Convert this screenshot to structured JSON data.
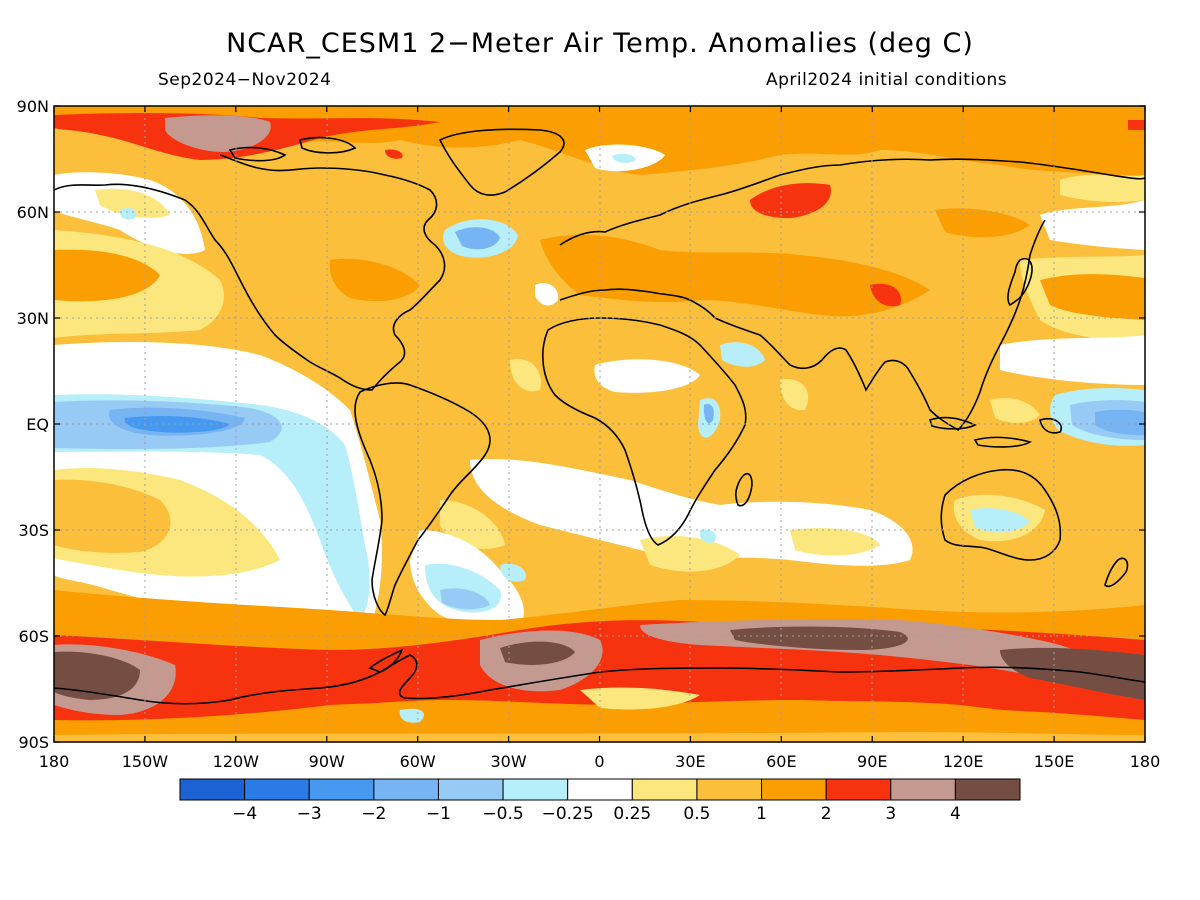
{
  "title": "NCAR_CESM1 2−Meter Air Temp. Anomalies (deg C)",
  "period": "Sep2024−Nov2024",
  "init": "April2024 initial conditions",
  "lat_labels": [
    "90N",
    "60N",
    "30N",
    "EQ",
    "30S",
    "60S",
    "90S"
  ],
  "lon_labels": [
    "180",
    "150W",
    "120W",
    "90W",
    "60W",
    "30W",
    "0",
    "30E",
    "60E",
    "90E",
    "120E",
    "150E",
    "180"
  ],
  "colorbar": {
    "colors": [
      "#1c62d4",
      "#2a7ae8",
      "#4599f0",
      "#76b4f3",
      "#97caf5",
      "#b6eefa",
      "#ffffff",
      "#fce77e",
      "#fbbf3c",
      "#fa9e02",
      "#f7330f",
      "#c49a90",
      "#744d43"
    ],
    "labels": [
      "−4",
      "−3",
      "−2",
      "−1",
      "−0.5",
      "−0.25",
      "0.25",
      "0.5",
      "1",
      "2",
      "3",
      "4"
    ]
  },
  "palette": {
    "base": "#fbbf3c",
    "land_outline": "#000000",
    "grid": "#a0a0a0"
  }
}
